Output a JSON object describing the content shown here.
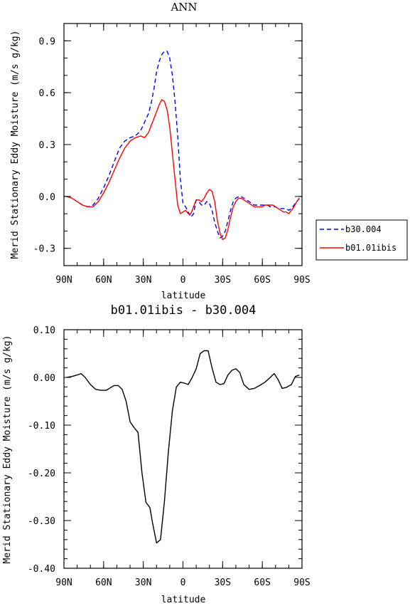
{
  "chart_data": [
    {
      "type": "line",
      "title": "ANN",
      "xlabel": "latitude",
      "ylabel": "Merid Stationary Eddy Moisture (m/s g/kg)",
      "xlim": [
        90,
        -90
      ],
      "ylim": [
        -0.4,
        1.0
      ],
      "x_ticks": [
        90,
        60,
        30,
        0,
        -30,
        -60,
        -90
      ],
      "x_tick_labels": [
        "90N",
        "60N",
        "30N",
        "0",
        "30S",
        "60S",
        "90S"
      ],
      "y_ticks": [
        -0.3,
        0.0,
        0.3,
        0.6,
        0.9
      ],
      "y_tick_labels": [
        "-0.3",
        "0.0",
        "0.3",
        "0.6",
        "0.9"
      ],
      "legend": {
        "position": "right",
        "entries": [
          "b30.004",
          "b01.01ibis"
        ]
      },
      "series": [
        {
          "name": "b30.004",
          "color": "#0000ff",
          "style": "dashed",
          "x": [
            88,
            84,
            80,
            76,
            72,
            68,
            64,
            60,
            56,
            52,
            48,
            44,
            40,
            36,
            32,
            29,
            26,
            24,
            22,
            20,
            18,
            16,
            14,
            12,
            10,
            8,
            6,
            4,
            2,
            0,
            -2,
            -4,
            -6,
            -8,
            -10,
            -12,
            -14,
            -16,
            -18,
            -20,
            -22,
            -24,
            -26,
            -28,
            -30,
            -32,
            -34,
            -36,
            -38,
            -40,
            -42,
            -44,
            -46,
            -48,
            -50,
            -52,
            -54,
            -56,
            -58,
            -60,
            -62,
            -64,
            -66,
            -68,
            -70,
            -72,
            -74,
            -76,
            -78,
            -80,
            -82,
            -84,
            -86,
            -88
          ],
          "y": [
            0.0,
            -0.01,
            -0.03,
            -0.05,
            -0.06,
            -0.05,
            -0.01,
            0.05,
            0.12,
            0.2,
            0.28,
            0.32,
            0.34,
            0.35,
            0.38,
            0.43,
            0.48,
            0.54,
            0.62,
            0.72,
            0.78,
            0.82,
            0.84,
            0.84,
            0.8,
            0.7,
            0.55,
            0.35,
            0.1,
            -0.04,
            -0.06,
            -0.09,
            -0.12,
            -0.1,
            -0.02,
            -0.03,
            -0.05,
            -0.05,
            -0.03,
            -0.04,
            -0.08,
            -0.15,
            -0.2,
            -0.24,
            -0.23,
            -0.2,
            -0.14,
            -0.08,
            -0.03,
            -0.01,
            0.0,
            0.0,
            -0.01,
            -0.02,
            -0.03,
            -0.04,
            -0.05,
            -0.05,
            -0.05,
            -0.05,
            -0.05,
            -0.05,
            -0.06,
            -0.06,
            -0.06,
            -0.07,
            -0.07,
            -0.07,
            -0.07,
            -0.08,
            -0.07,
            -0.05,
            -0.03,
            -0.01
          ]
        },
        {
          "name": "b01.01ibis",
          "color": "#ff0000",
          "style": "solid",
          "x": [
            88,
            84,
            80,
            76,
            72,
            68,
            64,
            60,
            56,
            52,
            48,
            44,
            40,
            36,
            32,
            29,
            26,
            24,
            22,
            20,
            18,
            16,
            14,
            12,
            10,
            8,
            6,
            4,
            2,
            0,
            -2,
            -4,
            -6,
            -8,
            -10,
            -12,
            -14,
            -16,
            -18,
            -20,
            -22,
            -24,
            -26,
            -28,
            -30,
            -32,
            -34,
            -36,
            -38,
            -40,
            -42,
            -44,
            -46,
            -48,
            -50,
            -52,
            -54,
            -56,
            -58,
            -60,
            -62,
            -64,
            -66,
            -68,
            -70,
            -72,
            -74,
            -76,
            -78,
            -80,
            -82,
            -84,
            -86,
            -88
          ],
          "y": [
            0.0,
            -0.01,
            -0.03,
            -0.05,
            -0.06,
            -0.06,
            -0.03,
            0.02,
            0.08,
            0.15,
            0.22,
            0.28,
            0.32,
            0.34,
            0.35,
            0.34,
            0.37,
            0.41,
            0.45,
            0.49,
            0.53,
            0.56,
            0.55,
            0.5,
            0.4,
            0.25,
            0.1,
            -0.05,
            -0.1,
            -0.09,
            -0.08,
            -0.1,
            -0.1,
            -0.06,
            -0.02,
            -0.02,
            -0.03,
            -0.01,
            0.02,
            0.04,
            0.03,
            -0.03,
            -0.14,
            -0.21,
            -0.25,
            -0.24,
            -0.19,
            -0.12,
            -0.06,
            -0.03,
            -0.01,
            -0.01,
            -0.02,
            -0.03,
            -0.04,
            -0.05,
            -0.06,
            -0.06,
            -0.06,
            -0.06,
            -0.05,
            -0.05,
            -0.05,
            -0.05,
            -0.06,
            -0.07,
            -0.08,
            -0.09,
            -0.09,
            -0.1,
            -0.08,
            -0.06,
            -0.03,
            -0.01
          ]
        }
      ]
    },
    {
      "type": "line",
      "title": "b01.01ibis - b30.004",
      "xlabel": "latitude",
      "ylabel": "Merid Stationary Eddy Moisture (m/s g/kg)",
      "xlim": [
        90,
        -90
      ],
      "ylim": [
        -0.4,
        0.1
      ],
      "x_ticks": [
        90,
        60,
        30,
        0,
        -30,
        -60,
        -90
      ],
      "x_tick_labels": [
        "90N",
        "60N",
        "30N",
        "0",
        "30S",
        "60S",
        "90S"
      ],
      "y_ticks": [
        -0.4,
        -0.3,
        -0.2,
        -0.1,
        0.0,
        0.1
      ],
      "y_tick_labels": [
        "-0.40",
        "-0.30",
        "-0.20",
        "-0.10",
        "0.00",
        "0.10"
      ],
      "series": [
        {
          "color": "#000000",
          "style": "solid",
          "x": [
            88,
            84,
            80,
            77,
            74,
            70,
            66,
            62,
            58,
            55,
            52,
            49,
            46,
            43,
            40,
            37,
            34,
            31,
            28,
            25,
            23,
            20,
            17,
            14,
            11,
            8,
            5,
            2,
            -1,
            -4,
            -7,
            -10,
            -13,
            -16,
            -19,
            -22,
            -25,
            -28,
            -31,
            -34,
            -37,
            -40,
            -43,
            -46,
            -50,
            -54,
            -58,
            -62,
            -66,
            -69,
            -72,
            -75,
            -78,
            -82,
            -85,
            -88
          ],
          "y": [
            0.0,
            0.002,
            0.005,
            0.008,
            0.0,
            -0.015,
            -0.025,
            -0.027,
            -0.027,
            -0.022,
            -0.017,
            -0.017,
            -0.025,
            -0.05,
            -0.093,
            -0.105,
            -0.115,
            -0.2,
            -0.262,
            -0.273,
            -0.305,
            -0.347,
            -0.34,
            -0.26,
            -0.155,
            -0.07,
            -0.02,
            -0.01,
            -0.012,
            -0.015,
            0.0,
            0.018,
            0.05,
            0.056,
            0.056,
            0.02,
            -0.01,
            -0.015,
            -0.013,
            0.005,
            0.015,
            0.018,
            0.01,
            -0.015,
            -0.025,
            -0.023,
            -0.017,
            -0.01,
            0.0,
            0.008,
            -0.005,
            -0.023,
            -0.021,
            -0.015,
            0.002,
            0.005
          ]
        }
      ]
    }
  ]
}
